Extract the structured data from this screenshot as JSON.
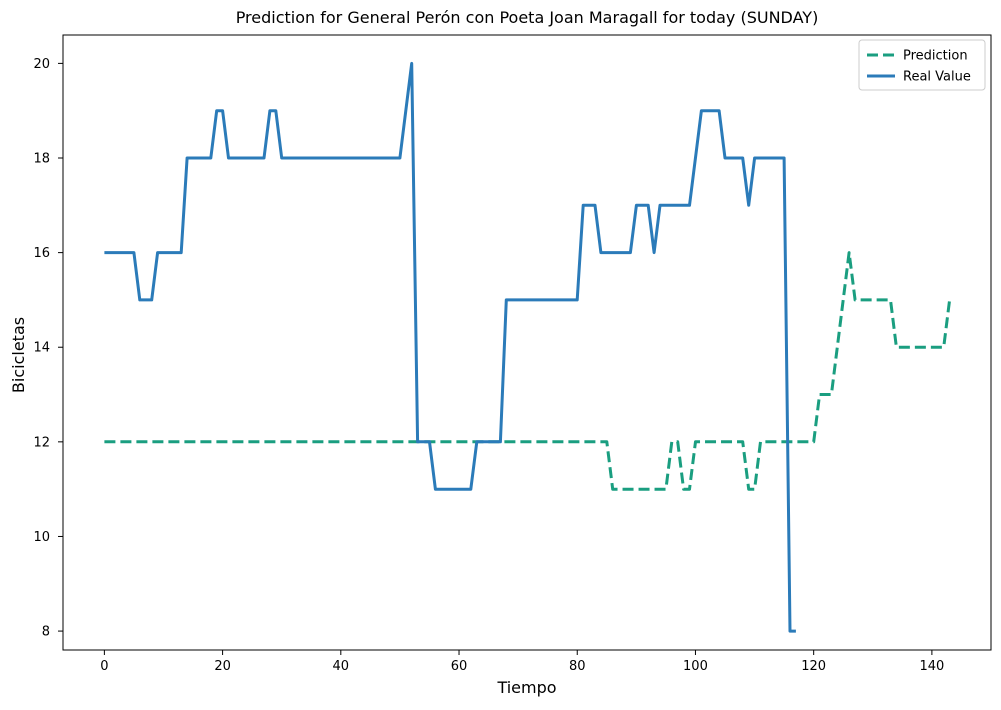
{
  "chart_data": {
    "type": "line",
    "title": "Prediction for General Perón con Poeta Joan Maragall for today (SUNDAY)",
    "xlabel": "Tiempo",
    "ylabel": "Bicicletas",
    "xlim": [
      -7,
      150
    ],
    "ylim": [
      7.6,
      20.6
    ],
    "xticks": [
      0,
      20,
      40,
      60,
      80,
      100,
      120,
      140
    ],
    "yticks": [
      8,
      10,
      12,
      14,
      16,
      18,
      20
    ],
    "grid": false,
    "legend_position": "upper-right",
    "series": [
      {
        "name": "Prediction",
        "color": "#1a9e80",
        "style": "dashed",
        "x": [
          0,
          85,
          86,
          95,
          96,
          97,
          98,
          99,
          100,
          108,
          109,
          110,
          111,
          112,
          120,
          121,
          123,
          124,
          126,
          127,
          133,
          134,
          142,
          143
        ],
        "y": [
          12,
          12,
          11,
          11,
          12,
          12,
          11,
          11,
          12,
          12,
          11,
          11,
          12,
          12,
          12,
          13,
          13,
          14,
          16,
          15,
          15,
          14,
          14,
          15
        ]
      },
      {
        "name": "Real Value",
        "color": "#2b7bb9",
        "style": "solid",
        "x": [
          0,
          5,
          6,
          8,
          9,
          13,
          14,
          18,
          19,
          20,
          21,
          27,
          28,
          29,
          30,
          50,
          52,
          53,
          55,
          56,
          62,
          63,
          67,
          68,
          80,
          81,
          83,
          84,
          89,
          90,
          92,
          93,
          94,
          99,
          101,
          102,
          104,
          105,
          108,
          109,
          110,
          115,
          116,
          117
        ],
        "y": [
          16,
          16,
          15,
          15,
          16,
          16,
          18,
          18,
          19,
          19,
          18,
          18,
          19,
          19,
          18,
          18,
          20,
          12,
          12,
          11,
          11,
          12,
          12,
          15,
          15,
          17,
          17,
          16,
          16,
          17,
          17,
          16,
          17,
          17,
          19,
          19,
          19,
          18,
          18,
          17,
          18,
          18,
          8,
          8
        ]
      }
    ]
  }
}
